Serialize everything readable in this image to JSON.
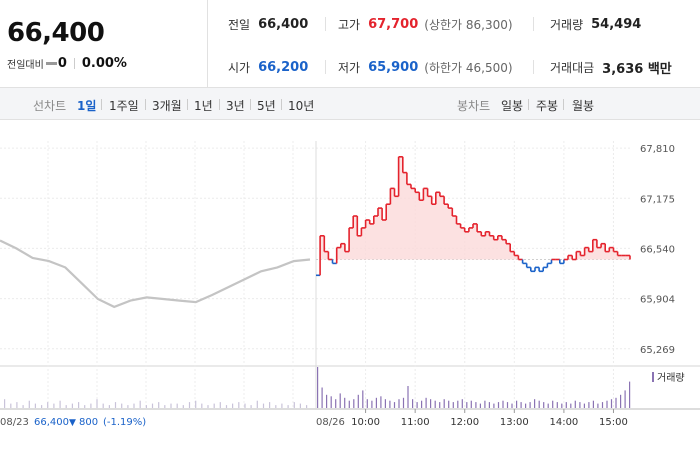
{
  "quote": {
    "price": "66,400",
    "change_label": "전일대비",
    "change_icon": "flat-dash-icon",
    "change_value": "0",
    "change_pct": "0.00%"
  },
  "stats": {
    "prev_close_label": "전일",
    "prev_close": "66,400",
    "high_label": "고가",
    "high": "67,700",
    "upper_limit": "(상한가 86,300)",
    "volume_label": "거래량",
    "volume": "54,494",
    "open_label": "시가",
    "open": "66,200",
    "low_label": "저가",
    "low": "65,900",
    "lower_limit": "(하한가 46,500)",
    "trade_value_label": "거래대금",
    "trade_value": "3,636 백만"
  },
  "toolbar": {
    "line_chart_label": "선차트",
    "line_periods": [
      "1일",
      "1주일",
      "3개월",
      "1년",
      "3년",
      "5년",
      "10년"
    ],
    "active_period": "1일",
    "candle_chart_label": "봉차트",
    "candle_periods": [
      "일봉",
      "주봉",
      "월봉"
    ]
  },
  "colors": {
    "up": "#e4232d",
    "down": "#1a62c9",
    "prev_day_line": "#c4c4c4",
    "up_fill": "#fbdada",
    "volume": "#8a73b3"
  },
  "chart_data": {
    "type": "line",
    "ylim": [
      65140,
      67900
    ],
    "yticks": [
      "67,810",
      "67,175",
      "66,540",
      "65,904",
      "65,269"
    ],
    "ytick_values": [
      67810,
      67175,
      66540,
      65904,
      65269
    ],
    "baseline": 66400,
    "prev_day": {
      "date_label": "08/23",
      "close_label": "66,400",
      "change_icon": "down-triangle-icon",
      "change": "800",
      "change_pct": "(-1.19%)",
      "points": [
        [
          "08/23 09:00",
          66640
        ],
        [
          "08/23 09:20",
          66540
        ],
        [
          "08/23 09:40",
          66420
        ],
        [
          "08/23 10:00",
          66380
        ],
        [
          "08/23 10:20",
          66300
        ],
        [
          "08/23 10:40",
          66100
        ],
        [
          "08/23 11:00",
          65900
        ],
        [
          "08/23 11:20",
          65800
        ],
        [
          "08/23 11:40",
          65880
        ],
        [
          "08/23 12:00",
          65920
        ],
        [
          "08/23 12:20",
          65900
        ],
        [
          "08/23 12:40",
          65880
        ],
        [
          "08/23 13:00",
          65860
        ],
        [
          "08/23 13:20",
          65950
        ],
        [
          "08/23 13:40",
          66050
        ],
        [
          "08/23 14:00",
          66150
        ],
        [
          "08/23 14:20",
          66250
        ],
        [
          "08/23 14:40",
          66300
        ],
        [
          "08/23 15:00",
          66380
        ],
        [
          "08/23 15:20",
          66400
        ]
      ]
    },
    "today": {
      "date_label": "08/26",
      "xticks": [
        "10:00",
        "11:00",
        "12:00",
        "13:00",
        "14:00",
        "15:00"
      ],
      "points": [
        [
          "09:00",
          66200
        ],
        [
          "09:05",
          66700
        ],
        [
          "09:10",
          66500
        ],
        [
          "09:15",
          66400
        ],
        [
          "09:20",
          66350
        ],
        [
          "09:25",
          66550
        ],
        [
          "09:30",
          66600
        ],
        [
          "09:35",
          66500
        ],
        [
          "09:40",
          66800
        ],
        [
          "09:45",
          66950
        ],
        [
          "09:50",
          66700
        ],
        [
          "09:55",
          66800
        ],
        [
          "10:00",
          66900
        ],
        [
          "10:05",
          66850
        ],
        [
          "10:10",
          66950
        ],
        [
          "10:15",
          67050
        ],
        [
          "10:20",
          66900
        ],
        [
          "10:25",
          67100
        ],
        [
          "10:30",
          67300
        ],
        [
          "10:35",
          67200
        ],
        [
          "10:40",
          67700
        ],
        [
          "10:45",
          67500
        ],
        [
          "10:50",
          67350
        ],
        [
          "10:55",
          67300
        ],
        [
          "11:00",
          67250
        ],
        [
          "11:05",
          67150
        ],
        [
          "11:10",
          67300
        ],
        [
          "11:15",
          67200
        ],
        [
          "11:20",
          67100
        ],
        [
          "11:25",
          67250
        ],
        [
          "11:30",
          67200
        ],
        [
          "11:35",
          67100
        ],
        [
          "11:40",
          67050
        ],
        [
          "11:45",
          66950
        ],
        [
          "11:50",
          66850
        ],
        [
          "11:55",
          66800
        ],
        [
          "12:00",
          66750
        ],
        [
          "12:05",
          66800
        ],
        [
          "12:10",
          66850
        ],
        [
          "12:15",
          66750
        ],
        [
          "12:20",
          66700
        ],
        [
          "12:25",
          66750
        ],
        [
          "12:30",
          66700
        ],
        [
          "12:35",
          66650
        ],
        [
          "12:40",
          66700
        ],
        [
          "12:45",
          66650
        ],
        [
          "12:50",
          66600
        ],
        [
          "12:55",
          66500
        ],
        [
          "13:00",
          66450
        ],
        [
          "13:05",
          66400
        ],
        [
          "13:10",
          66350
        ],
        [
          "13:15",
          66300
        ],
        [
          "13:20",
          66250
        ],
        [
          "13:25",
          66300
        ],
        [
          "13:30",
          66250
        ],
        [
          "13:35",
          66300
        ],
        [
          "13:40",
          66350
        ],
        [
          "13:45",
          66400
        ],
        [
          "13:50",
          66400
        ],
        [
          "13:55",
          66350
        ],
        [
          "14:00",
          66400
        ],
        [
          "14:05",
          66450
        ],
        [
          "14:10",
          66400
        ],
        [
          "14:15",
          66500
        ],
        [
          "14:20",
          66450
        ],
        [
          "14:25",
          66550
        ],
        [
          "14:30",
          66500
        ],
        [
          "14:35",
          66650
        ],
        [
          "14:40",
          66550
        ],
        [
          "14:45",
          66600
        ],
        [
          "14:50",
          66500
        ],
        [
          "14:55",
          66550
        ],
        [
          "15:00",
          66500
        ],
        [
          "15:05",
          66450
        ],
        [
          "15:10",
          66450
        ],
        [
          "15:15",
          66450
        ],
        [
          "15:20",
          66400
        ]
      ]
    },
    "volume_legend": "거래량",
    "volume_bars": [
      6,
      3,
      4,
      2,
      5,
      3,
      2,
      4,
      3,
      5,
      2,
      3,
      4,
      2,
      3,
      6,
      3,
      2,
      4,
      3,
      2,
      3,
      5,
      2,
      3,
      4,
      2,
      3,
      3,
      2,
      4,
      5,
      3,
      2,
      3,
      4,
      2,
      3,
      4,
      3,
      2,
      5,
      3,
      4,
      2,
      3,
      2,
      4,
      3,
      2,
      28,
      14,
      9,
      8,
      6,
      10,
      7,
      5,
      6,
      9,
      12,
      6,
      5,
      7,
      8,
      6,
      5,
      4,
      6,
      7,
      15,
      6,
      4,
      5,
      7,
      6,
      5,
      4,
      6,
      5,
      4,
      5,
      6,
      4,
      5,
      4,
      3,
      5,
      4,
      3,
      4,
      5,
      4,
      3,
      5,
      4,
      3,
      4,
      6,
      5,
      4,
      3,
      5,
      4,
      3,
      4,
      3,
      5,
      4,
      3,
      4,
      5,
      3,
      4,
      5,
      6,
      7,
      9,
      12,
      18
    ]
  }
}
